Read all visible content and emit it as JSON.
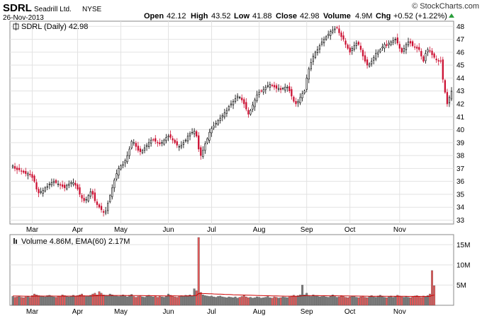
{
  "header": {
    "ticker": "SDRL",
    "company": "Seadrill Ltd.",
    "exchange": "NYSE",
    "date": "26-Nov-2013",
    "brand": "© StockCharts.com",
    "open_label": "Open",
    "open": "42.12",
    "high_label": "High",
    "high": "43.52",
    "low_label": "Low",
    "low": "41.88",
    "close_label": "Close",
    "close": "42.98",
    "volume_label": "Volume",
    "volume": "4.9M",
    "chg_label": "Chg",
    "chg": "+0.52 (+1.22%)"
  },
  "legend": {
    "price": "SDRL (Daily) 42.98",
    "volume": "Volume 4.86M, EMA(60) 2.17M"
  },
  "colors": {
    "up": "#000000",
    "down": "#cc1133",
    "volume_up": "#7a7a7a",
    "volume_down": "#e05a5a",
    "ema": "#cc0000",
    "grid": "#e2e2e2",
    "chg_arrow": "#2a9d3a"
  },
  "chart_data": {
    "type": "candlestick",
    "price_axis": {
      "ticks": [
        33,
        34,
        35,
        36,
        37,
        38,
        39,
        40,
        41,
        42,
        43,
        44,
        45,
        46,
        47,
        48
      ],
      "range": [
        32.7,
        48.4
      ]
    },
    "volume_axis": {
      "ticks": [
        "5M",
        "10M",
        "15M"
      ],
      "tick_values": [
        5,
        10,
        15
      ],
      "range": [
        0,
        17.5
      ],
      "unit": "millions"
    },
    "months": [
      "Mar",
      "Apr",
      "May",
      "Jun",
      "Jul",
      "Aug",
      "Sep",
      "Oct",
      "Nov"
    ],
    "month_start_index": [
      9,
      30,
      50,
      72,
      92,
      114,
      136,
      156,
      179
    ],
    "close": [
      37.2,
      37.0,
      36.9,
      36.9,
      36.8,
      36.7,
      36.6,
      36.6,
      36.5,
      36.3,
      36.0,
      35.4,
      35.1,
      35.2,
      35.3,
      35.5,
      35.6,
      35.8,
      35.9,
      36.0,
      35.9,
      35.8,
      35.7,
      35.6,
      35.5,
      35.7,
      35.8,
      35.9,
      35.9,
      35.7,
      35.4,
      35.0,
      34.7,
      34.5,
      34.6,
      34.9,
      35.2,
      35.0,
      34.5,
      34.2,
      34.0,
      33.8,
      33.6,
      33.7,
      34.3,
      34.9,
      35.5,
      36.1,
      36.6,
      37.0,
      37.2,
      37.3,
      37.6,
      38.0,
      38.5,
      39.1,
      39.0,
      38.7,
      38.4,
      38.3,
      38.4,
      38.6,
      38.8,
      39.0,
      39.2,
      39.2,
      39.1,
      39.0,
      38.9,
      39.0,
      39.2,
      39.4,
      39.5,
      39.4,
      39.2,
      39.0,
      38.8,
      38.7,
      38.8,
      39.0,
      39.2,
      39.5,
      39.7,
      39.8,
      39.9,
      39.5,
      38.5,
      38.0,
      38.4,
      38.9,
      39.3,
      39.8,
      40.1,
      40.3,
      40.5,
      40.7,
      40.9,
      41.1,
      41.3,
      41.5,
      41.8,
      42.0,
      42.2,
      42.4,
      42.6,
      42.5,
      42.3,
      42.0,
      41.6,
      41.2,
      41.5,
      41.9,
      42.3,
      42.7,
      42.9,
      43.0,
      43.1,
      43.3,
      43.4,
      43.5,
      43.4,
      43.3,
      43.2,
      43.2,
      43.1,
      43.2,
      43.3,
      43.3,
      43.0,
      42.6,
      42.2,
      42.0,
      42.2,
      42.5,
      42.8,
      43.0,
      44.0,
      44.7,
      45.2,
      45.7,
      46.0,
      46.2,
      46.5,
      46.8,
      47.0,
      47.2,
      47.4,
      47.6,
      47.7,
      47.8,
      47.9,
      47.5,
      47.2,
      47.0,
      46.6,
      46.3,
      46.0,
      46.3,
      46.5,
      46.7,
      46.6,
      46.2,
      45.7,
      45.3,
      45.0,
      45.1,
      45.3,
      45.6,
      45.9,
      46.0,
      46.2,
      46.4,
      46.6,
      46.5,
      46.7,
      46.8,
      46.9,
      47.0,
      46.7,
      46.3,
      46.0,
      46.3,
      46.6,
      46.8,
      46.7,
      46.5,
      46.4,
      46.3,
      46.2,
      45.7,
      45.3,
      45.9,
      46.2,
      46.1,
      45.8,
      45.6,
      45.4,
      45.3,
      45.3,
      43.9,
      42.9,
      42.0,
      42.5,
      42.98
    ],
    "volume_millions": [
      2.2,
      2.0,
      2.1,
      2.3,
      2.0,
      1.9,
      2.1,
      2.2,
      2.0,
      2.4,
      2.8,
      2.6,
      2.4,
      2.3,
      2.2,
      2.1,
      2.4,
      2.5,
      2.3,
      2.1,
      2.0,
      2.2,
      2.3,
      2.6,
      2.4,
      2.2,
      2.1,
      2.3,
      2.5,
      2.2,
      2.4,
      2.6,
      2.8,
      2.4,
      2.2,
      2.3,
      2.5,
      2.8,
      3.0,
      2.6,
      3.4,
      3.0,
      2.6,
      2.5,
      2.4,
      2.8,
      2.6,
      2.4,
      2.3,
      2.2,
      2.4,
      2.6,
      2.3,
      2.1,
      2.5,
      2.7,
      2.2,
      2.0,
      2.2,
      2.3,
      2.1,
      2.0,
      2.4,
      2.5,
      2.2,
      2.1,
      2.3,
      2.0,
      2.2,
      2.1,
      2.0,
      2.3,
      2.8,
      2.5,
      2.3,
      2.1,
      2.0,
      2.2,
      2.4,
      2.3,
      2.5,
      2.4,
      2.6,
      2.3,
      4.1,
      3.6,
      16.8,
      3.2,
      2.6,
      2.4,
      2.3,
      2.2,
      2.3,
      2.1,
      2.0,
      2.2,
      2.3,
      2.1,
      2.0,
      1.9,
      2.1,
      2.0,
      1.9,
      2.1,
      1.8,
      2.0,
      2.2,
      2.4,
      2.1,
      1.9,
      2.0,
      1.8,
      1.9,
      2.1,
      2.0,
      1.8,
      1.9,
      2.0,
      2.2,
      1.9,
      1.8,
      2.1,
      2.0,
      1.8,
      1.9,
      2.1,
      2.0,
      1.9,
      2.1,
      2.3,
      2.5,
      2.2,
      2.4,
      2.6,
      5.0,
      2.6,
      3.0,
      2.4,
      2.2,
      2.6,
      2.4,
      2.3,
      2.1,
      2.2,
      2.4,
      2.1,
      2.0,
      2.3,
      2.6,
      2.2,
      2.0,
      2.1,
      2.4,
      2.2,
      2.0,
      1.9,
      2.1,
      2.3,
      2.2,
      2.0,
      1.9,
      2.1,
      2.3,
      2.0,
      1.9,
      2.2,
      2.4,
      2.1,
      2.0,
      2.3,
      2.5,
      2.2,
      2.0,
      1.9,
      2.1,
      2.3,
      2.0,
      2.2,
      2.5,
      2.3,
      2.1,
      2.0,
      2.2,
      2.0,
      1.9,
      2.1,
      2.3,
      2.4,
      2.2,
      2.0,
      2.3,
      2.1,
      2.4,
      2.8,
      8.6,
      4.86
    ],
    "ema60_millions_start": 2.3,
    "ema60_millions_end": 2.17
  }
}
